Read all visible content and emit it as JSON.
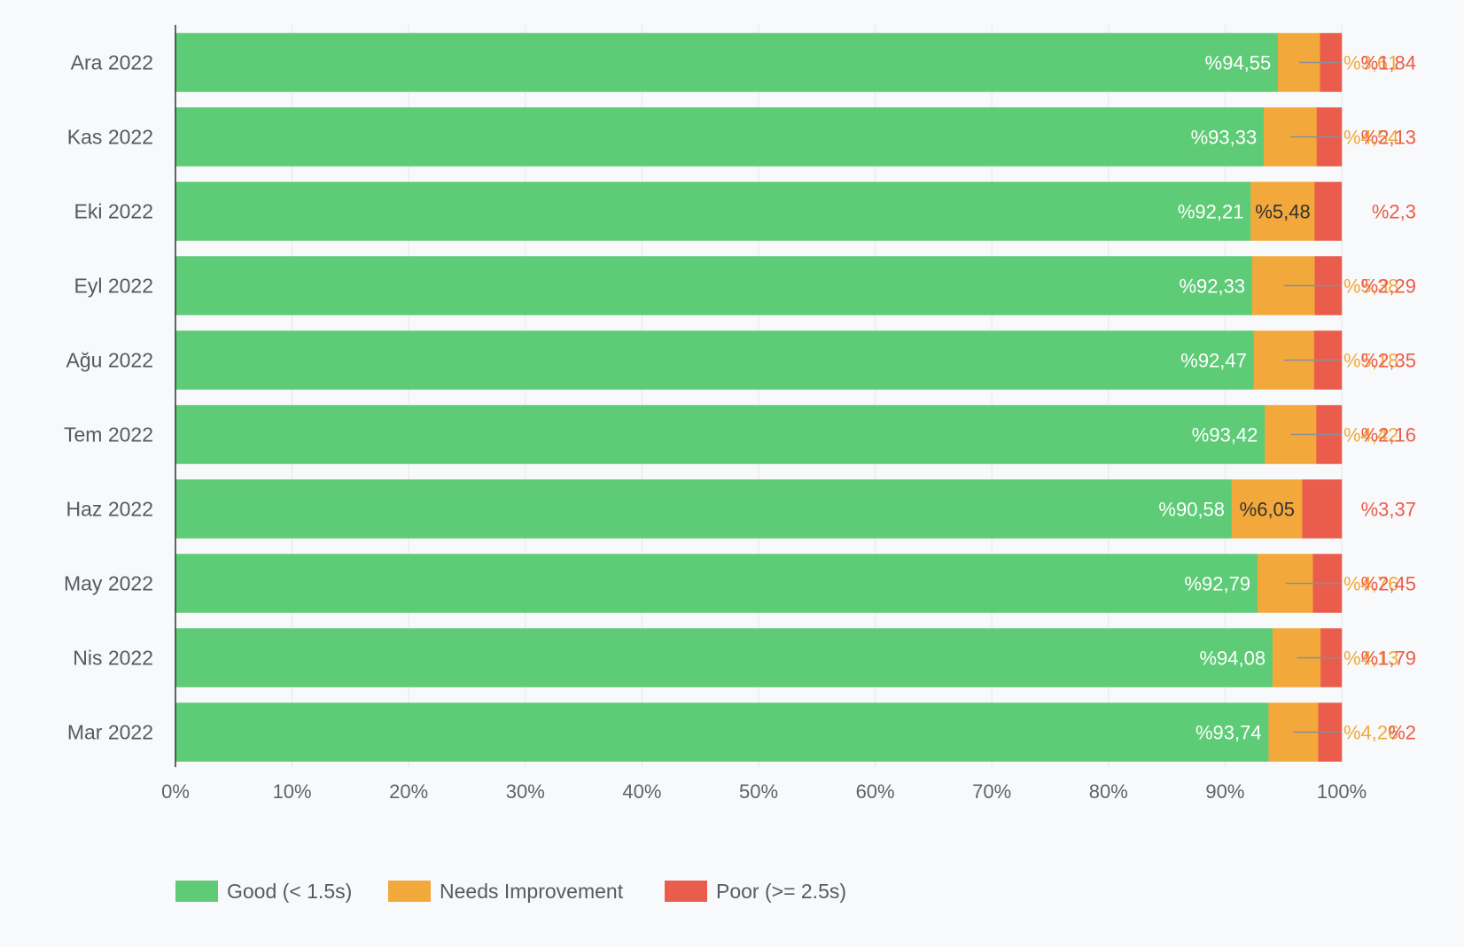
{
  "chart_data": {
    "type": "bar",
    "orientation": "horizontal",
    "stacked": true,
    "normalized_percent": true,
    "categories": [
      "Ara 2022",
      "Kas 2022",
      "Eki 2022",
      "Eyl 2022",
      "Ağu 2022",
      "Tem 2022",
      "Haz 2022",
      "May 2022",
      "Nis 2022",
      "Mar 2022"
    ],
    "series": [
      {
        "name": "Good (< 1.5s)",
        "color": "#5ecb76",
        "values": [
          94.55,
          93.33,
          92.21,
          92.33,
          92.47,
          93.42,
          90.58,
          92.79,
          94.08,
          93.74
        ],
        "labels": [
          "%94,55",
          "%93,33",
          "%92,21",
          "%92,33",
          "%92,47",
          "%93,42",
          "%90,58",
          "%92,79",
          "%94,08",
          "%93,74"
        ]
      },
      {
        "name": "Needs Improvement",
        "color": "#f3a83b",
        "values": [
          3.61,
          4.54,
          5.48,
          5.38,
          5.18,
          4.42,
          6.05,
          4.76,
          4.13,
          4.26
        ],
        "labels": [
          "%3,61",
          "%4,54",
          "%5,48",
          "%5,38",
          "%5,18",
          "%4,42",
          "%6,05",
          "%4,76",
          "%4,13",
          "%4,26"
        ]
      },
      {
        "name": "Poor (>= 2.5s)",
        "color": "#ea5d4d",
        "values": [
          1.84,
          2.13,
          2.3,
          2.29,
          2.35,
          2.16,
          3.37,
          2.45,
          1.79,
          2
        ],
        "labels": [
          "%1,84",
          "%2,13",
          "%2,3",
          "%2,29",
          "%2,35",
          "%2,16",
          "%3,37",
          "%2,45",
          "%1,79",
          "%2"
        ]
      }
    ],
    "x_ticks": [
      "0%",
      "10%",
      "20%",
      "30%",
      "40%",
      "50%",
      "60%",
      "70%",
      "80%",
      "90%",
      "100%"
    ],
    "xlim": [
      0,
      100
    ],
    "grid": true,
    "legend": "bottom-left"
  },
  "legend": {
    "items": [
      {
        "label": "Good (< 1.5s)",
        "color": "#5ecb76"
      },
      {
        "label": "Needs Improvement",
        "color": "#f3a83b"
      },
      {
        "label": "Poor (>= 2.5s)",
        "color": "#ea5d4d"
      }
    ]
  }
}
